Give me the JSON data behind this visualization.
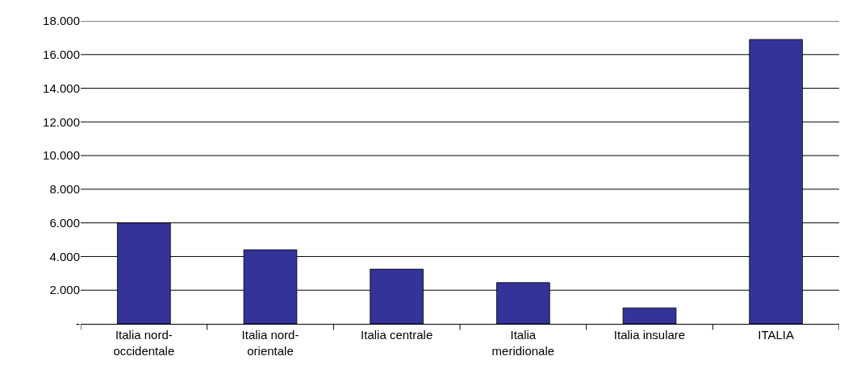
{
  "chart_data": {
    "type": "bar",
    "categories": [
      "Italia nord-occidentale",
      "Italia nord-orientale",
      "Italia centrale",
      "Italia meridionale",
      "Italia insulare",
      "ITALIA"
    ],
    "values": [
      6000,
      4400,
      3250,
      2450,
      950,
      16900
    ],
    "color": "#333399",
    "ylim": [
      0,
      18000
    ],
    "yticks": [
      {
        "value": 0,
        "label": "-"
      },
      {
        "value": 2000,
        "label": "2.000"
      },
      {
        "value": 4000,
        "label": "4.000"
      },
      {
        "value": 6000,
        "label": "6.000"
      },
      {
        "value": 8000,
        "label": "8.000"
      },
      {
        "value": 10000,
        "label": "10.000"
      },
      {
        "value": 12000,
        "label": "12.000"
      },
      {
        "value": 14000,
        "label": "14.000"
      },
      {
        "value": 16000,
        "label": "16.000"
      },
      {
        "value": 18000,
        "label": "18.000"
      }
    ],
    "grid": "y"
  }
}
